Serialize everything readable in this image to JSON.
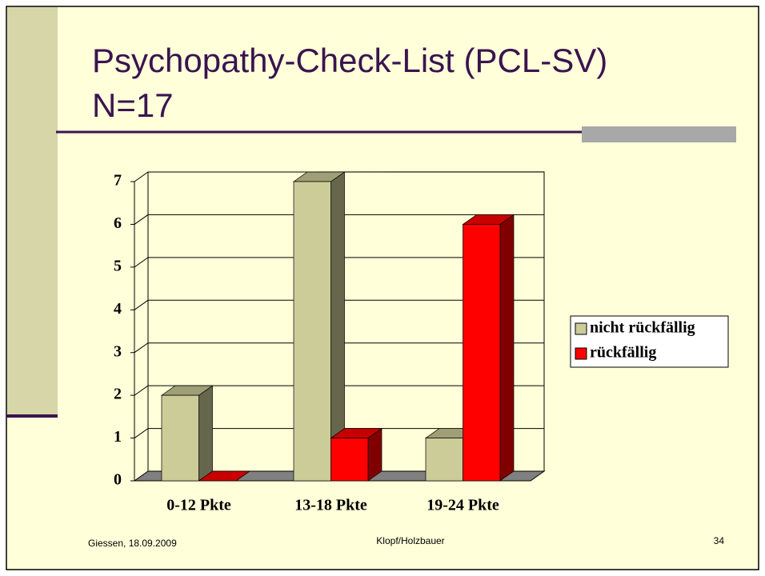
{
  "slide": {
    "title_lines": [
      "Psychopathy-Check-List (PCL-SV)",
      "N=17"
    ],
    "footer": {
      "left": "Giessen, 18.09.2009",
      "center": "Klopf/Holzbauer",
      "right": "34"
    }
  },
  "chart_data": {
    "type": "bar3d",
    "categories": [
      "0-12 Pkte",
      "13-18 Pkte",
      "19-24 Pkte"
    ],
    "series": [
      {
        "name": "nicht rückfällig",
        "color": "#cccc99",
        "values": [
          2,
          7,
          1
        ]
      },
      {
        "name": "rückfällig",
        "color": "#ff0000",
        "values": [
          0,
          1,
          6
        ]
      }
    ],
    "ylim": [
      0,
      7
    ],
    "yticks": [
      0,
      1,
      2,
      3,
      4,
      5,
      6,
      7
    ],
    "grid": true,
    "legend": "right"
  }
}
